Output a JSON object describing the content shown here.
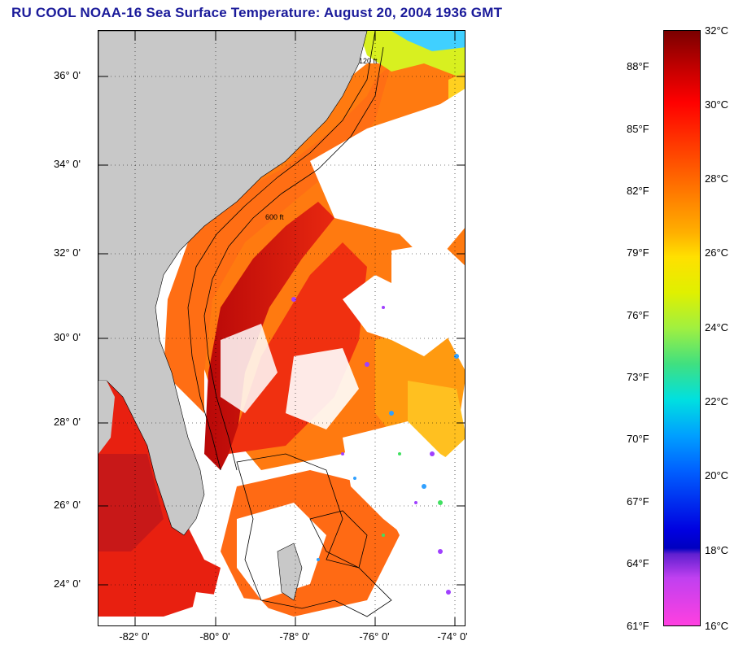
{
  "title": "RU COOL  NOAA-16  Sea Surface Temperature:  August 20, 2004 1936 GMT",
  "map": {
    "latitude_labels": [
      "36° 0'",
      "34° 0'",
      "32° 0'",
      "30° 0'",
      "28° 0'",
      "26° 0'",
      "24° 0'"
    ],
    "longitude_labels": [
      "-82° 0'",
      "-80° 0'",
      "-78° 0'",
      "-76° 0'",
      "-74° 0'"
    ],
    "contour_labels": [
      "120 ft",
      "600 ft"
    ],
    "colors": {
      "land": "#c8c8c8",
      "cloud": "#ffffff",
      "warm_water": "#ff5a10",
      "hot_water": "#e01010",
      "gulf_stream": "#c00808",
      "cool_water": "#f4e020",
      "cold_water": "#30c8ff"
    }
  },
  "colorbar": {
    "fahrenheit_labels": [
      "88°F",
      "85°F",
      "82°F",
      "79°F",
      "76°F",
      "73°F",
      "70°F",
      "67°F",
      "64°F",
      "61°F"
    ],
    "celsius_labels": [
      "32°C",
      "30°C",
      "28°C",
      "26°C",
      "24°C",
      "22°C",
      "20°C",
      "18°C",
      "16°C"
    ],
    "scale_min_c": 16,
    "scale_max_c": 32
  }
}
